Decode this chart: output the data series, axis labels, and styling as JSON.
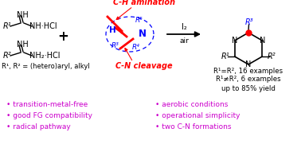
{
  "bg_color": "#ffffff",
  "red_color": "#ff0000",
  "blue_color": "#0000ff",
  "magenta_color": "#cc00cc",
  "bullet_items_left": [
    "transition-metal-free",
    "good FG compatibility",
    "radical pathway"
  ],
  "bullet_items_right": [
    "aerobic conditions",
    "operational simplicity",
    "two C-N formations"
  ],
  "ch_amination_label": "C-H amination",
  "cn_cleavage_label": "C-N cleavage",
  "r1r2_eq": "R¹=R², 16 examples",
  "r1r2_neq": "R¹≠R², 6 examples",
  "yield_text": "up to 85% yield",
  "scope_text": "R¹, R² = (hetero)aryl, alkyl"
}
